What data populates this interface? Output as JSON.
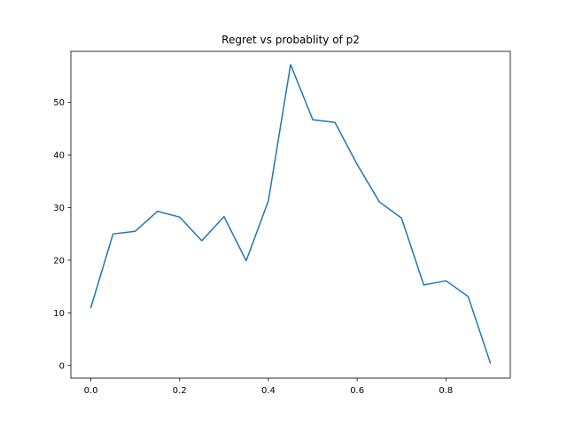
{
  "chart_data": {
    "type": "line",
    "title": "Regret vs probablity of p2",
    "xlabel": "",
    "ylabel": "",
    "xlim": [
      -0.045,
      0.945
    ],
    "ylim": [
      -2.4,
      59.7
    ],
    "x_ticks": [
      0.0,
      0.2,
      0.4,
      0.6,
      0.8
    ],
    "x_tick_labels": [
      "0.0",
      "0.2",
      "0.4",
      "0.6",
      "0.8"
    ],
    "y_ticks": [
      0,
      10,
      20,
      30,
      40,
      50
    ],
    "y_tick_labels": [
      "0",
      "10",
      "20",
      "30",
      "40",
      "50"
    ],
    "grid": false,
    "series": [
      {
        "color": "#1f77b4",
        "x": [
          0.0,
          0.05,
          0.1,
          0.15,
          0.2,
          0.25,
          0.3,
          0.35,
          0.4,
          0.45,
          0.5,
          0.55,
          0.6,
          0.65,
          0.7,
          0.75,
          0.8,
          0.85,
          0.9
        ],
        "y": [
          11.0,
          25.0,
          25.5,
          29.3,
          28.2,
          23.7,
          28.3,
          19.9,
          31.3,
          57.2,
          46.7,
          46.2,
          38.2,
          31.1,
          28.0,
          15.3,
          16.1,
          13.1,
          0.5
        ]
      }
    ]
  }
}
